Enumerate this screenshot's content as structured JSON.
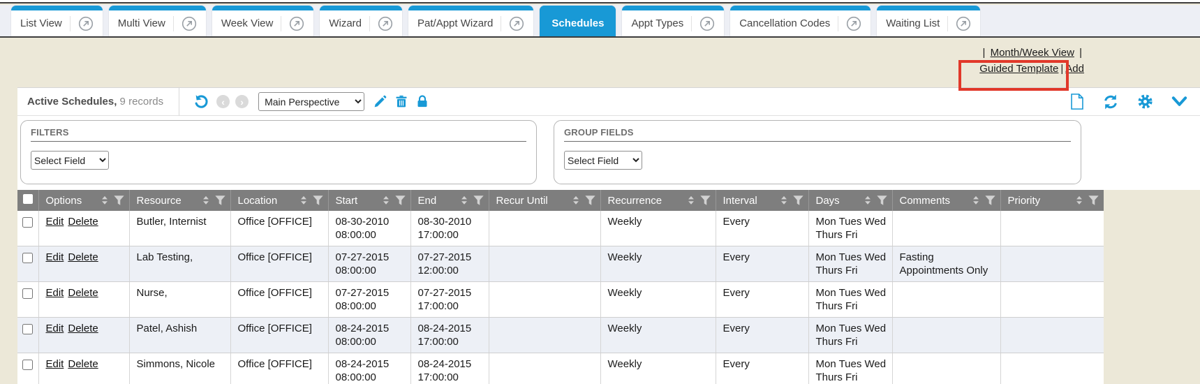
{
  "colors": {
    "accent_blue": "#1899d6",
    "page_beige": "#ece8d8",
    "tabstrip_bg": "#edeff5",
    "header_gray": "#7e7e7e",
    "alt_row": "#edf0f6",
    "highlight_red": "#e1382a"
  },
  "tabs": {
    "items": [
      {
        "label": "List View",
        "active": false,
        "external_icon": true
      },
      {
        "label": "Multi View",
        "active": false,
        "external_icon": true
      },
      {
        "label": "Week View",
        "active": false,
        "external_icon": true
      },
      {
        "label": "Wizard",
        "active": false,
        "external_icon": true
      },
      {
        "label": "Pat/Appt Wizard",
        "active": false,
        "external_icon": true
      },
      {
        "label": "Schedules",
        "active": true,
        "external_icon": false
      },
      {
        "label": "Appt Types",
        "active": false,
        "external_icon": true
      },
      {
        "label": "Cancellation Codes",
        "active": false,
        "external_icon": true
      },
      {
        "label": "Waiting List",
        "active": false,
        "external_icon": true
      }
    ]
  },
  "quick_links": {
    "line1_prefix": "| ",
    "month_week_view": "Month/Week View",
    "line1_suffix": " |",
    "guided_template": "Guided Template",
    "separator": "|",
    "add": "Add"
  },
  "toolbar": {
    "title": "Active Schedules,",
    "record_count": " 9 records",
    "perspective_value": "Main Perspective",
    "icons": {
      "undo": "undo-icon",
      "prev": "prev-icon",
      "next": "next-icon",
      "edit": "pencil-icon",
      "delete": "trash-icon",
      "lock": "lock-icon",
      "new_document": "document-icon",
      "refresh": "refresh-icon",
      "settings": "gear-icon",
      "collapse": "chevron-down-icon"
    }
  },
  "filters_panel": {
    "label": "FILTERS",
    "select_value": "Select Field"
  },
  "group_fields_panel": {
    "label": "GROUP FIELDS",
    "select_value": "Select Field"
  },
  "table": {
    "columns": [
      "Options",
      "Resource",
      "Location",
      "Start",
      "End",
      "Recur Until",
      "Recurrence",
      "Interval",
      "Days",
      "Comments",
      "Priority"
    ],
    "rows": [
      {
        "options": [
          "Edit",
          "Delete"
        ],
        "resource": "Butler, Internist",
        "location": "Office [OFFICE]",
        "start": "08-30-2010 08:00:00",
        "end": "08-30-2010 17:00:00",
        "recur_until": "",
        "recurrence": "Weekly",
        "interval": "Every",
        "days": "Mon Tues Wed Thurs Fri",
        "comments": "",
        "priority": ""
      },
      {
        "options": [
          "Edit",
          "Delete"
        ],
        "resource": "Lab Testing,",
        "location": "Office [OFFICE]",
        "start": "07-27-2015 08:00:00",
        "end": "07-27-2015 12:00:00",
        "recur_until": "",
        "recurrence": "Weekly",
        "interval": "Every",
        "days": "Mon Tues Wed Thurs Fri",
        "comments": "Fasting Appointments Only",
        "priority": ""
      },
      {
        "options": [
          "Edit",
          "Delete"
        ],
        "resource": "Nurse,",
        "location": "Office [OFFICE]",
        "start": "07-27-2015 08:00:00",
        "end": "07-27-2015 17:00:00",
        "recur_until": "",
        "recurrence": "Weekly",
        "interval": "Every",
        "days": "Mon Tues Wed Thurs Fri",
        "comments": "",
        "priority": ""
      },
      {
        "options": [
          "Edit",
          "Delete"
        ],
        "resource": "Patel, Ashish",
        "location": "Office [OFFICE]",
        "start": "08-24-2015 08:00:00",
        "end": "08-24-2015 17:00:00",
        "recur_until": "",
        "recurrence": "Weekly",
        "interval": "Every",
        "days": "Mon Tues Wed Thurs Fri",
        "comments": "",
        "priority": ""
      },
      {
        "options": [
          "Edit",
          "Delete"
        ],
        "resource": "Simmons, Nicole",
        "location": "Office [OFFICE]",
        "start": "08-24-2015 08:00:00",
        "end": "08-24-2015 17:00:00",
        "recur_until": "",
        "recurrence": "Weekly",
        "interval": "Every",
        "days": "Mon Tues Wed Thurs Fri",
        "comments": "",
        "priority": ""
      }
    ]
  }
}
